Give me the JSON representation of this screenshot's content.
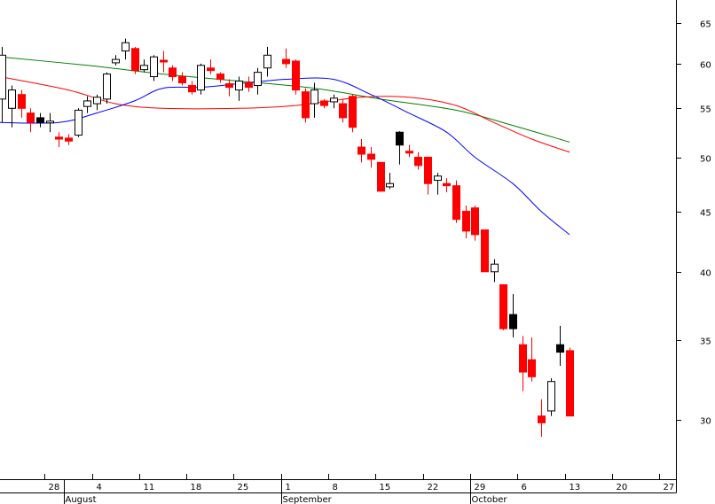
{
  "chart_data": {
    "type": "candlestick",
    "scale": "log",
    "ylim": [
      26.5,
      68
    ],
    "y_ticks": [
      30,
      35,
      40,
      45,
      50,
      55,
      60,
      65
    ],
    "x_day_ticks": [
      "28",
      "4",
      "11",
      "18",
      "25",
      "1",
      "8",
      "15",
      "22",
      "29",
      "6",
      "13",
      "20",
      "27"
    ],
    "month_labels": [
      "August",
      "September",
      "October"
    ],
    "colors": {
      "up_body": "#ffffff",
      "up_outline": "#000000",
      "down": "#ff0000",
      "down_alt": "#000000",
      "ma_short": "#0000ff",
      "ma_mid": "#ff0000",
      "ma_long": "#008000"
    },
    "candles": [
      {
        "date": "2007-07-23",
        "open": 56,
        "high": 62,
        "low": 53.5,
        "close": 61
      },
      {
        "date": "2007-07-24",
        "open": 55,
        "high": 57.5,
        "low": 53,
        "close": 57
      },
      {
        "date": "2007-07-25",
        "open": 56.5,
        "high": 57,
        "low": 54,
        "close": 55
      },
      {
        "date": "2007-07-26",
        "open": 54.5,
        "high": 55,
        "low": 52.5,
        "close": 53.5,
        "color": "red"
      },
      {
        "date": "2007-07-27",
        "open": 54,
        "high": 54.5,
        "low": 53,
        "close": 53.5,
        "color": "black"
      },
      {
        "date": "2007-07-30",
        "open": 53.5,
        "high": 54.5,
        "low": 52.5,
        "close": 53.6
      },
      {
        "date": "2007-07-31",
        "open": 52,
        "high": 52.5,
        "low": 51,
        "close": 51.8
      },
      {
        "date": "2007-08-01",
        "open": 51.9,
        "high": 52.3,
        "low": 51.2,
        "close": 51.6
      },
      {
        "date": "2007-08-02",
        "open": 52.2,
        "high": 55,
        "low": 52,
        "close": 54.8
      },
      {
        "date": "2007-08-03",
        "open": 55.2,
        "high": 56.3,
        "low": 54.5,
        "close": 55.8
      },
      {
        "date": "2007-08-06",
        "open": 55.5,
        "high": 56.5,
        "low": 54.8,
        "close": 56.2
      },
      {
        "date": "2007-08-07",
        "open": 56,
        "high": 59,
        "low": 55.5,
        "close": 58.8
      },
      {
        "date": "2007-08-08",
        "open": 60.1,
        "high": 61,
        "low": 59.8,
        "close": 60.5
      },
      {
        "date": "2007-08-09",
        "open": 61.5,
        "high": 63,
        "low": 60.5,
        "close": 62.5
      },
      {
        "date": "2007-08-10",
        "open": 61.8,
        "high": 62,
        "low": 58.8,
        "close": 59.2
      },
      {
        "date": "2007-08-13",
        "open": 59.3,
        "high": 60.5,
        "low": 59,
        "close": 59.8
      },
      {
        "date": "2007-08-14",
        "open": 58.5,
        "high": 61,
        "low": 58,
        "close": 60.8
      },
      {
        "date": "2007-08-15",
        "open": 60.3,
        "high": 61.5,
        "low": 59,
        "close": 60.3,
        "color": "red"
      },
      {
        "date": "2007-08-16",
        "open": 59.5,
        "high": 59.8,
        "low": 58,
        "close": 58.5
      },
      {
        "date": "2007-08-17",
        "open": 58.5,
        "high": 59,
        "low": 57.5,
        "close": 57.8
      },
      {
        "date": "2007-08-20",
        "open": 57.5,
        "high": 58,
        "low": 56.5,
        "close": 56.8
      },
      {
        "date": "2007-08-21",
        "open": 57,
        "high": 60,
        "low": 56.5,
        "close": 59.8
      },
      {
        "date": "2007-08-22",
        "open": 59.5,
        "high": 60.5,
        "low": 58.8,
        "close": 59.2
      },
      {
        "date": "2007-08-23",
        "open": 58.8,
        "high": 59,
        "low": 57.8,
        "close": 58.2
      },
      {
        "date": "2007-08-26",
        "open": 57.7,
        "high": 58.2,
        "low": 56.3,
        "close": 57.3
      },
      {
        "date": "2007-08-27",
        "open": 57,
        "high": 58.5,
        "low": 55.8,
        "close": 58
      },
      {
        "date": "2007-08-28",
        "open": 57.8,
        "high": 58.5,
        "low": 56.8,
        "close": 57.3
      },
      {
        "date": "2007-08-29",
        "open": 57.5,
        "high": 59.5,
        "low": 56.5,
        "close": 59
      },
      {
        "date": "2007-08-30",
        "open": 59.5,
        "high": 62,
        "low": 58.5,
        "close": 61
      },
      {
        "date": "2007-09-03",
        "open": 60.5,
        "high": 61.8,
        "low": 59.5,
        "close": 60
      },
      {
        "date": "2007-09-04",
        "open": 60.3,
        "high": 60.5,
        "low": 56.5,
        "close": 57
      },
      {
        "date": "2007-09-05",
        "open": 56.8,
        "high": 57.2,
        "low": 53.5,
        "close": 54
      },
      {
        "date": "2007-09-06",
        "open": 55.5,
        "high": 57.8,
        "low": 54,
        "close": 57,
        "color": "black"
      },
      {
        "date": "2007-09-07",
        "open": 55.8,
        "high": 56,
        "low": 55,
        "close": 55.3
      },
      {
        "date": "2007-09-10",
        "open": 55.7,
        "high": 56.5,
        "low": 55,
        "close": 56.1
      },
      {
        "date": "2007-09-11",
        "open": 55.5,
        "high": 56,
        "low": 53.5,
        "close": 54
      },
      {
        "date": "2007-09-12",
        "open": 56.3,
        "high": 56.5,
        "low": 52.5,
        "close": 53
      },
      {
        "date": "2007-09-13",
        "open": 51,
        "high": 51.8,
        "low": 49.5,
        "close": 50.3
      },
      {
        "date": "2007-09-14",
        "open": 50.3,
        "high": 51,
        "low": 49,
        "close": 49.8
      },
      {
        "date": "2007-09-17",
        "open": 49.5,
        "high": 49.5,
        "low": 46.8,
        "close": 46.8
      },
      {
        "date": "2007-09-18",
        "open": 47.2,
        "high": 48.5,
        "low": 47,
        "close": 47.5
      },
      {
        "date": "2007-09-19",
        "open": 52.5,
        "high": 52.6,
        "low": 49.3,
        "close": 51.2,
        "color": "black"
      },
      {
        "date": "2007-09-20",
        "open": 50.5,
        "high": 51.2,
        "low": 50,
        "close": 50.5
      },
      {
        "date": "2007-09-21",
        "open": 50,
        "high": 50.5,
        "low": 48.8,
        "close": 49.2
      },
      {
        "date": "2007-09-24",
        "open": 50,
        "high": 50,
        "low": 46.5,
        "close": 47.5
      },
      {
        "date": "2007-09-25",
        "open": 47.8,
        "high": 48.5,
        "low": 46.5,
        "close": 48.2
      },
      {
        "date": "2007-09-26",
        "open": 47.5,
        "high": 48,
        "low": 46.7,
        "close": 47.3
      },
      {
        "date": "2007-09-27",
        "open": 47.3,
        "high": 47.8,
        "low": 44,
        "close": 44.3
      },
      {
        "date": "2007-09-28",
        "open": 45,
        "high": 45.5,
        "low": 42.7,
        "close": 43.3
      },
      {
        "date": "2007-10-01",
        "open": 45.3,
        "high": 45.5,
        "low": 42.5,
        "close": 43
      },
      {
        "date": "2007-10-02",
        "open": 43.4,
        "high": 43.4,
        "low": 40,
        "close": 40
      },
      {
        "date": "2007-10-03",
        "open": 40,
        "high": 41,
        "low": 39.2,
        "close": 40.6
      },
      {
        "date": "2007-10-04",
        "open": 39,
        "high": 39,
        "low": 35.7,
        "close": 35.8
      },
      {
        "date": "2007-10-05",
        "open": 36.8,
        "high": 38.3,
        "low": 35.2,
        "close": 35.8,
        "color": "black"
      },
      {
        "date": "2007-10-08",
        "open": 34.7,
        "high": 35.3,
        "low": 31.7,
        "close": 32.9
      },
      {
        "date": "2007-10-09",
        "open": 33.7,
        "high": 35.2,
        "low": 32.3,
        "close": 32.6
      },
      {
        "date": "2007-10-10",
        "open": 30.2,
        "high": 31.2,
        "low": 29,
        "close": 29.8
      },
      {
        "date": "2007-10-11",
        "open": 30.5,
        "high": 32.5,
        "low": 30.2,
        "close": 32.3
      },
      {
        "date": "2007-10-12",
        "open": 34.7,
        "high": 36,
        "low": 33.3,
        "close": 34.2,
        "color": "black"
      },
      {
        "date": "2007-10-15",
        "open": 34.3,
        "high": 34.5,
        "low": 30.2,
        "close": 30.2
      }
    ],
    "ma_short": [
      {
        "date": "2007-07-23",
        "value": 53.5
      },
      {
        "date": "2007-07-31",
        "value": 53.5
      },
      {
        "date": "2007-08-06",
        "value": 54.5
      },
      {
        "date": "2007-08-10",
        "value": 55.8
      },
      {
        "date": "2007-08-15",
        "value": 57.2
      },
      {
        "date": "2007-08-21",
        "value": 57.3
      },
      {
        "date": "2007-08-27",
        "value": 57.7
      },
      {
        "date": "2007-09-03",
        "value": 58.2
      },
      {
        "date": "2007-09-10",
        "value": 58.2
      },
      {
        "date": "2007-09-14",
        "value": 56.5
      },
      {
        "date": "2007-09-20",
        "value": 54.5
      },
      {
        "date": "2007-09-26",
        "value": 52.5
      },
      {
        "date": "2007-10-01",
        "value": 50
      },
      {
        "date": "2007-10-05",
        "value": 47.5
      },
      {
        "date": "2007-10-10",
        "value": 45
      },
      {
        "date": "2007-10-15",
        "value": 43
      }
    ],
    "ma_mid": [
      {
        "date": "2007-07-23",
        "value": 58.5
      },
      {
        "date": "2007-08-01",
        "value": 57
      },
      {
        "date": "2007-08-08",
        "value": 55.5
      },
      {
        "date": "2007-08-15",
        "value": 55
      },
      {
        "date": "2007-08-27",
        "value": 55
      },
      {
        "date": "2007-09-04",
        "value": 55.3
      },
      {
        "date": "2007-09-13",
        "value": 56.2
      },
      {
        "date": "2007-09-20",
        "value": 56.2
      },
      {
        "date": "2007-09-27",
        "value": 55.3
      },
      {
        "date": "2007-10-03",
        "value": 53.5
      },
      {
        "date": "2007-10-09",
        "value": 51.8
      },
      {
        "date": "2007-10-15",
        "value": 50.5
      }
    ],
    "ma_long": [
      {
        "date": "2007-07-23",
        "value": 60.8
      },
      {
        "date": "2007-08-03",
        "value": 59.8
      },
      {
        "date": "2007-08-15",
        "value": 58.8
      },
      {
        "date": "2007-08-27",
        "value": 58
      },
      {
        "date": "2007-09-06",
        "value": 57.2
      },
      {
        "date": "2007-09-17",
        "value": 56
      },
      {
        "date": "2007-09-27",
        "value": 54.8
      },
      {
        "date": "2007-10-05",
        "value": 53.2
      },
      {
        "date": "2007-10-15",
        "value": 51.5
      }
    ]
  }
}
